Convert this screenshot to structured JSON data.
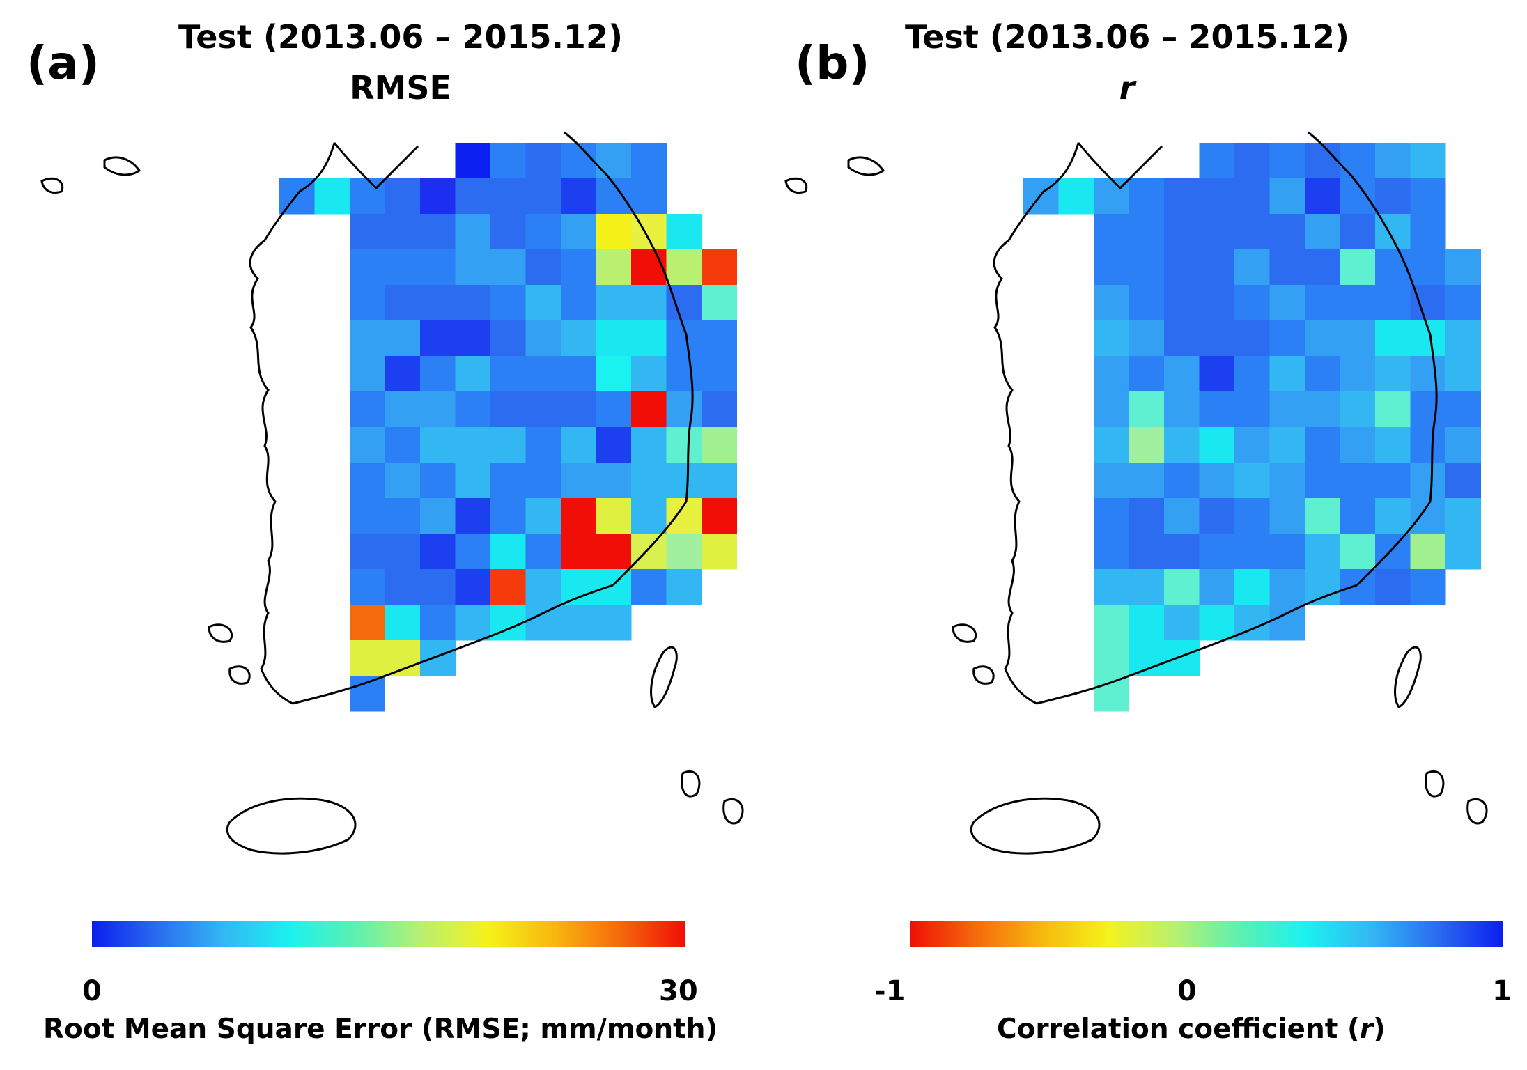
{
  "panels": [
    {
      "letter": "(a)",
      "title_line1": "Test (2013.06 – 2015.12)",
      "title_line2": "RMSE",
      "colorbar": {
        "min_label": "0",
        "max_label": "30",
        "label": "Root Mean Square Error (RMSE; mm/month)",
        "stops": [
          "#0b1ff0",
          "#2b6cf0",
          "#33b7f3",
          "#1af2f0",
          "#5ef0b0",
          "#b9f070",
          "#f5f21a",
          "#f7b80e",
          "#f56a0c",
          "#f00e06"
        ]
      }
    },
    {
      "letter": "(b)",
      "title_line1": "Test (2013.06 – 2015.12)",
      "title_line2": "r",
      "colorbar": {
        "min_label": "-1",
        "mid_label": "0",
        "max_label": "1",
        "label_prefix": "Correlation coefficient (",
        "label_italic": "r",
        "label_suffix": ")",
        "stops": [
          "#f00e06",
          "#f56a0c",
          "#f7b80e",
          "#f5f21a",
          "#b9f070",
          "#5ef0b0",
          "#1af2f0",
          "#33b7f3",
          "#2b6cf0",
          "#0b1ff0"
        ]
      }
    }
  ],
  "grid_colors": {
    "a": [
      [
        "",
        "",
        "",
        "",
        "",
        "",
        "",
        "0B1FF0",
        "2B80F5",
        "2B6CF0",
        "2B80F5",
        "33A0F3",
        "2B80F5",
        "",
        ""
      ],
      [
        "",
        "",
        "2B80F5",
        "1AE8F0",
        "2B80F5",
        "2B6CF0",
        "1C2FF0",
        "2B6CF0",
        "2B6CF0",
        "2B6CF0",
        "1C3FF0",
        "2B80F5",
        "2B80F5",
        "",
        ""
      ],
      [
        "",
        "",
        "",
        "",
        "2B6CF0",
        "2B6CF0",
        "2B6CF0",
        "33A0F3",
        "2B6CF0",
        "2B80F5",
        "33A0F3",
        "F5F21A",
        "E8F040",
        "1AE8F0",
        ""
      ],
      [
        "",
        "",
        "",
        "",
        "2B80F5",
        "2B80F5",
        "2B80F5",
        "33A0F3",
        "33A0F3",
        "2B6CF0",
        "2B80F5",
        "B9F070",
        "F00E06",
        "B9F070",
        "F53A0C"
      ],
      [
        "",
        "",
        "",
        "",
        "2B80F5",
        "2B6CF0",
        "2B6CF0",
        "2B6CF0",
        "2B80F5",
        "33B7F3",
        "2B80F5",
        "33B7F3",
        "33B7F3",
        "2B6CF0",
        "5EF0D0"
      ],
      [
        "",
        "",
        "",
        "",
        "33A0F3",
        "33A0F3",
        "1C3FF0",
        "1C3FF0",
        "2B6CF0",
        "33A0F3",
        "33B7F3",
        "1AE8F0",
        "1AE8F0",
        "2B80F5",
        "2B80F5"
      ],
      [
        "",
        "",
        "",
        "",
        "33A0F3",
        "1C3FF0",
        "2B80F5",
        "33B7F3",
        "2B80F5",
        "2B80F5",
        "2B80F5",
        "1AF2F0",
        "33B7F3",
        "2B80F5",
        "2B80F5"
      ],
      [
        "",
        "",
        "",
        "",
        "2B80F5",
        "33A0F3",
        "33A0F3",
        "2B80F5",
        "2B6CF0",
        "2B6CF0",
        "2B6CF0",
        "2B80F5",
        "F00E06",
        "33A0F3",
        "2B6CF0"
      ],
      [
        "",
        "",
        "",
        "",
        "33A0F3",
        "2B80F5",
        "33B7F3",
        "33B7F3",
        "33B7F3",
        "2B80F5",
        "33B7F3",
        "1C3FF0",
        "33B7F3",
        "5EF0D0",
        "A0F090"
      ],
      [
        "",
        "",
        "",
        "",
        "2B80F5",
        "33A0F3",
        "2B80F5",
        "33B7F3",
        "2B80F5",
        "2B80F5",
        "33A0F3",
        "33A0F3",
        "33B7F3",
        "33B7F3",
        "33B7F3"
      ],
      [
        "",
        "",
        "",
        "",
        "2B80F5",
        "2B80F5",
        "33A0F3",
        "1C3FF0",
        "2B80F5",
        "33B7F3",
        "F00E06",
        "E0F040",
        "33B7F3",
        "E8F040",
        "F00E06"
      ],
      [
        "",
        "",
        "",
        "",
        "2B6CF0",
        "2B6CF0",
        "1C3FF0",
        "2B80F5",
        "1AE8F0",
        "2B80F5",
        "F00E06",
        "F00E06",
        "D8F050",
        "A0F0A0",
        "E0F040"
      ],
      [
        "",
        "",
        "",
        "",
        "2B80F5",
        "2B6CF0",
        "2B6CF0",
        "1C3FF0",
        "F53A0C",
        "33B7F3",
        "1AE8F0",
        "1AE8F0",
        "2B80F5",
        "33B7F3",
        ""
      ],
      [
        "",
        "",
        "",
        "",
        "F56A0C",
        "1AE8F0",
        "2B80F5",
        "33B7F3",
        "1AE8F0",
        "33B7F3",
        "33B7F3",
        "33B7F3",
        "",
        "",
        ""
      ],
      [
        "",
        "",
        "",
        "",
        "E0F040",
        "E0F040",
        "33B7F3",
        "",
        "",
        "",
        "",
        "",
        "",
        "",
        ""
      ],
      [
        "",
        "",
        "",
        "",
        "2B80F5",
        "",
        "",
        "",
        "",
        "",
        "",
        "",
        "",
        "",
        ""
      ]
    ],
    "b": [
      [
        "",
        "",
        "",
        "",
        "",
        "",
        "",
        "2B80F5",
        "2B6CF0",
        "2B80F5",
        "2B6CF0",
        "2B80F5",
        "33A0F3",
        "33B7F3",
        ""
      ],
      [
        "",
        "",
        "33A0F3",
        "1AE8F0",
        "33A0F3",
        "2B80F5",
        "2B6CF0",
        "2B6CF0",
        "2B6CF0",
        "33A0F3",
        "1C3FF0",
        "2B80F5",
        "2B6CF0",
        "2B80F5",
        ""
      ],
      [
        "",
        "",
        "",
        "",
        "2B80F5",
        "2B80F5",
        "2B6CF0",
        "2B6CF0",
        "2B6CF0",
        "2B6CF0",
        "33A0F3",
        "2B6CF0",
        "33B7F3",
        "2B80F5",
        ""
      ],
      [
        "",
        "",
        "",
        "",
        "2B80F5",
        "2B80F5",
        "2B6CF0",
        "2B6CF0",
        "33A0F3",
        "2B6CF0",
        "2B6CF0",
        "5EF0D0",
        "2B80F5",
        "2B80F5",
        "33A0F3"
      ],
      [
        "",
        "",
        "",
        "",
        "33A0F3",
        "2B80F5",
        "2B6CF0",
        "2B6CF0",
        "2B80F5",
        "33A0F3",
        "2B80F5",
        "2B80F5",
        "2B80F5",
        "2B6CF0",
        "2B80F5"
      ],
      [
        "",
        "",
        "",
        "",
        "33B7F3",
        "33A0F3",
        "2B6CF0",
        "2B6CF0",
        "2B6CF0",
        "2B80F5",
        "33A0F3",
        "33A0F3",
        "1AE8F0",
        "1AE8F0",
        "33B7F3"
      ],
      [
        "",
        "",
        "",
        "",
        "33A0F3",
        "2B80F5",
        "33A0F3",
        "1C3FF0",
        "2B80F5",
        "33B7F3",
        "2B80F5",
        "33A0F3",
        "33B7F3",
        "33A0F3",
        "33B7F3"
      ],
      [
        "",
        "",
        "",
        "",
        "33A0F3",
        "5EF0D0",
        "33A0F3",
        "2B80F5",
        "2B80F5",
        "33A0F3",
        "33A0F3",
        "33B7F3",
        "5EF0D0",
        "2B80F5",
        "2B80F5"
      ],
      [
        "",
        "",
        "",
        "",
        "33B7F3",
        "A0F0A0",
        "33B7F3",
        "1AE8F0",
        "33A0F3",
        "33B7F3",
        "2B80F5",
        "33A0F3",
        "33B7F3",
        "2B80F5",
        "33A0F3"
      ],
      [
        "",
        "",
        "",
        "",
        "33A0F3",
        "33A0F3",
        "2B80F5",
        "33A0F3",
        "33B7F3",
        "33A0F3",
        "2B80F5",
        "2B80F5",
        "2B80F5",
        "33A0F3",
        "2B6CF0"
      ],
      [
        "",
        "",
        "",
        "",
        "2B80F5",
        "2B6CF0",
        "33A0F3",
        "2B6CF0",
        "2B80F5",
        "33A0F3",
        "5EF0D0",
        "2B80F5",
        "33B7F3",
        "33A0F3",
        "33B7F3"
      ],
      [
        "",
        "",
        "",
        "",
        "2B80F5",
        "2B6CF0",
        "2B6CF0",
        "2B80F5",
        "2B80F5",
        "2B80F5",
        "33B7F3",
        "5EF0D0",
        "2B80F5",
        "A0F090",
        "33B7F3"
      ],
      [
        "",
        "",
        "",
        "",
        "33B7F3",
        "33B7F3",
        "5EF0D0",
        "33A0F3",
        "1AE8F0",
        "33A0F3",
        "33B7F3",
        "2B80F5",
        "2B6CF0",
        "2B80F5",
        ""
      ],
      [
        "",
        "",
        "",
        "",
        "5EF0D0",
        "1AE8F0",
        "33B7F3",
        "1AE8F0",
        "33B7F3",
        "33A0F3",
        "",
        "",
        "",
        "",
        ""
      ],
      [
        "",
        "",
        "",
        "",
        "5EF0D0",
        "1AE8F0",
        "1AE8F0",
        "",
        "",
        "",
        "",
        "",
        "",
        "",
        ""
      ],
      [
        "",
        "",
        "",
        "",
        "5EF0D0",
        "",
        "",
        "",
        "",
        "",
        "",
        "",
        "",
        "",
        ""
      ]
    ]
  }
}
